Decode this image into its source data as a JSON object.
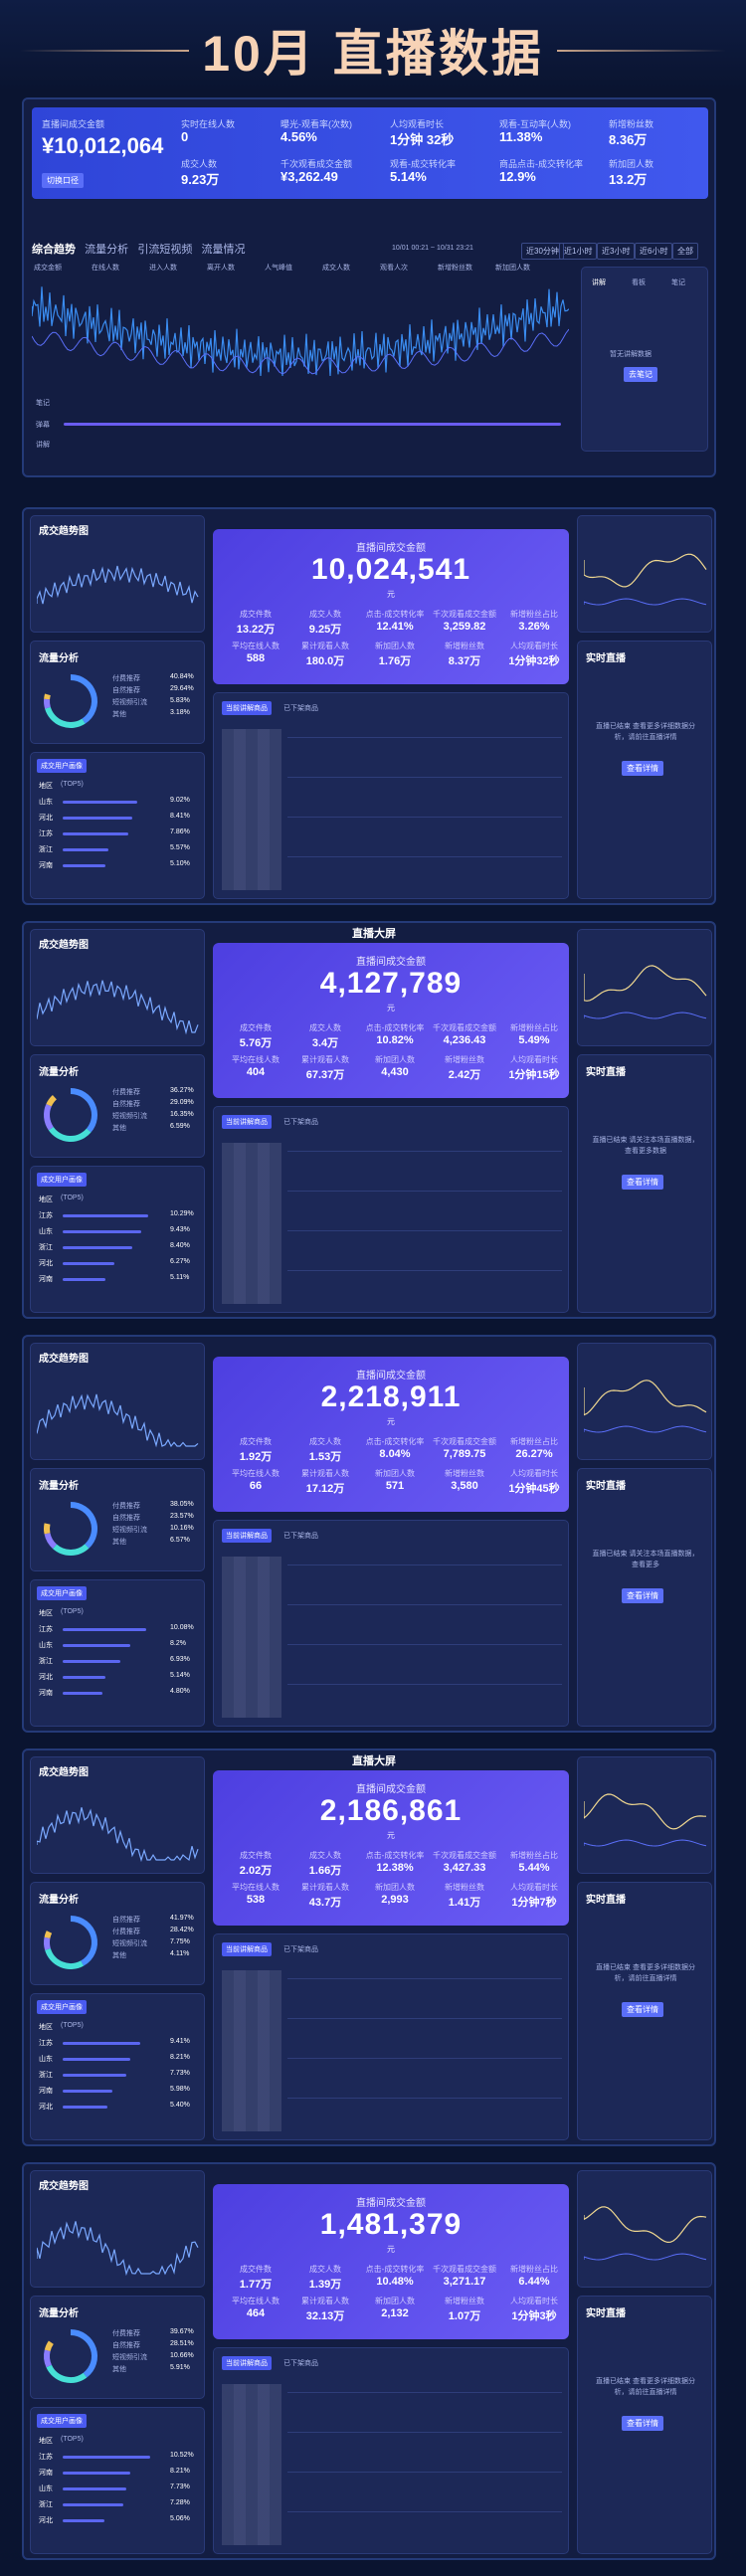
{
  "banner": {
    "title": "10月 直播数据"
  },
  "p1": {
    "gmv_label": "直播间成交金额",
    "gmv": "¥10,012,064",
    "gmv_btn": "切换口径",
    "stats": [
      {
        "l": "实时在线人数",
        "v": "0"
      },
      {
        "l": "曝光-观看率(次数)",
        "v": "4.56%"
      },
      {
        "l": "人均观看时长",
        "v": "1分钟 32秒"
      },
      {
        "l": "观看-互动率(人数)",
        "v": "11.38%"
      },
      {
        "l": "新增粉丝数",
        "v": "8.36万"
      },
      {
        "l": "成交人数",
        "v": "9.23万"
      },
      {
        "l": "千次观看成交金额",
        "v": "¥3,262.49"
      },
      {
        "l": "观看-成交转化率",
        "v": "5.14%"
      },
      {
        "l": "商品点击-成交转化率",
        "v": "12.9%"
      },
      {
        "l": "新加团人数",
        "v": "13.2万"
      }
    ],
    "tabs": [
      "综合趋势",
      "流量分析",
      "引流短视频",
      "流量情况"
    ],
    "date_range": "10/01 00:21 ~ 10/31 23:21",
    "ranges": [
      "近30分钟",
      "近1小时",
      "近3小时",
      "近6小时",
      "全部"
    ],
    "legend": [
      "成交金额",
      "在线人数",
      "进入人数",
      "离开人数",
      "人气峰值",
      "成交人数",
      "观看人次",
      "新增粉丝数",
      "新加团人数"
    ],
    "side_tabs": [
      "讲解",
      "看板",
      "笔记"
    ],
    "side_text": "暂无讲解数据",
    "side_btn": "去笔记",
    "foot1": "笔记",
    "foot2": "弹幕",
    "foot3": "讲解"
  },
  "screens": [
    {
      "label": "直播间成交金额",
      "value": "10,024,541",
      "unit": "元",
      "s1": [
        [
          "成交件数",
          "13.22万"
        ],
        [
          "成交人数",
          "9.25万"
        ],
        [
          "点击-成交转化率",
          "12.41%"
        ],
        [
          "千次观看成交金额",
          "3,259.82"
        ],
        [
          "新增粉丝占比",
          "3.26%"
        ]
      ],
      "s2": [
        [
          "平均在线人数",
          "588"
        ],
        [
          "累计观看人数",
          "180.0万"
        ],
        [
          "新加团人数",
          "1.76万"
        ],
        [
          "新增粉丝数",
          "8.37万"
        ],
        [
          "人均观看时长",
          "1分钟32秒"
        ]
      ],
      "trend": "成交趋势图",
      "flow": "流量分析",
      "live": "实时直播",
      "live_text": "直播已结束 查看更多详细数据分析，请前往直播详情",
      "live_btn": "查看详情",
      "legend": [
        "付费推荐",
        "自然推荐",
        "短视频引流",
        "其他"
      ],
      "pct": [
        "40.84%",
        "29.64%",
        "5.83%",
        "3.18%"
      ],
      "region_rows": [
        [
          "山东",
          "9.02%"
        ],
        [
          "河北",
          "8.41%"
        ],
        [
          "江苏",
          "7.86%"
        ],
        [
          "浙江",
          "5.57%"
        ],
        [
          "河南",
          "5.10%"
        ]
      ],
      "table_tabs": [
        "当前讲解商品",
        "已下架商品"
      ],
      "region_tab": "成交用户画像",
      "region_title": "地区",
      "region_unit": "(TOP5)"
    },
    {
      "label": "直播间成交金额",
      "value": "4,127,789",
      "unit": "元",
      "s1": [
        [
          "成交件数",
          "5.76万"
        ],
        [
          "成交人数",
          "3.4万"
        ],
        [
          "点击-成交转化率",
          "10.82%"
        ],
        [
          "千次观看成交金额",
          "4,236.43"
        ],
        [
          "新增粉丝占比",
          "5.49%"
        ]
      ],
      "s2": [
        [
          "平均在线人数",
          "404"
        ],
        [
          "累计观看人数",
          "67.37万"
        ],
        [
          "新加团人数",
          "4,430"
        ],
        [
          "新增粉丝数",
          "2.42万"
        ],
        [
          "人均观看时长",
          "1分钟15秒"
        ]
      ],
      "trend": "成交趋势图",
      "flow": "流量分析",
      "live": "实时直播",
      "live_text": "直播已结束 请关注本场直播数据，查看更多数据",
      "live_btn": "查看详情",
      "legend": [
        "付费推荐",
        "自然推荐",
        "短视频引流",
        "其他"
      ],
      "pct": [
        "36.27%",
        "29.09%",
        "16.35%",
        "6.59%"
      ],
      "region_rows": [
        [
          "江苏",
          "10.29%"
        ],
        [
          "山东",
          "9.43%"
        ],
        [
          "浙江",
          "8.40%"
        ],
        [
          "河北",
          "6.27%"
        ],
        [
          "河南",
          "5.11%"
        ]
      ],
      "table_tabs": [
        "当前讲解商品",
        "已下架商品"
      ],
      "region_tab": "成交用户画像",
      "region_title": "地区",
      "region_unit": "(TOP5)",
      "brand": "直播大屏"
    },
    {
      "label": "直播间成交金额",
      "value": "2,218,911",
      "unit": "元",
      "s1": [
        [
          "成交件数",
          "1.92万"
        ],
        [
          "成交人数",
          "1.53万"
        ],
        [
          "点击-成交转化率",
          "8.04%"
        ],
        [
          "千次观看成交金额",
          "7,789.75"
        ],
        [
          "新增粉丝占比",
          "26.27%"
        ]
      ],
      "s2": [
        [
          "平均在线人数",
          "66"
        ],
        [
          "累计观看人数",
          "17.12万"
        ],
        [
          "新加团人数",
          "571"
        ],
        [
          "新增粉丝数",
          "3,580"
        ],
        [
          "人均观看时长",
          "1分钟45秒"
        ]
      ],
      "trend": "成交趋势图",
      "flow": "流量分析",
      "live": "实时直播",
      "live_text": "直播已结束 请关注本场直播数据，查看更多",
      "live_btn": "查看详情",
      "legend": [
        "付费推荐",
        "自然推荐",
        "短视频引流",
        "其他"
      ],
      "pct": [
        "38.05%",
        "23.57%",
        "10.16%",
        "6.57%"
      ],
      "region_rows": [
        [
          "江苏",
          "10.08%"
        ],
        [
          "山东",
          "8.2%"
        ],
        [
          "浙江",
          "6.93%"
        ],
        [
          "河北",
          "5.14%"
        ],
        [
          "河南",
          "4.80%"
        ]
      ],
      "table_tabs": [
        "当前讲解商品",
        "已下架商品"
      ],
      "region_tab": "成交用户画像",
      "region_title": "地区",
      "region_unit": "(TOP5)"
    },
    {
      "label": "直播间成交金额",
      "value": "2,186,861",
      "unit": "元",
      "s1": [
        [
          "成交件数",
          "2.02万"
        ],
        [
          "成交人数",
          "1.66万"
        ],
        [
          "点击-成交转化率",
          "12.38%"
        ],
        [
          "千次观看成交金额",
          "3,427.33"
        ],
        [
          "新增粉丝占比",
          "5.44%"
        ]
      ],
      "s2": [
        [
          "平均在线人数",
          "538"
        ],
        [
          "累计观看人数",
          "43.7万"
        ],
        [
          "新加团人数",
          "2,993"
        ],
        [
          "新增粉丝数",
          "1.41万"
        ],
        [
          "人均观看时长",
          "1分钟7秒"
        ]
      ],
      "trend": "成交趋势图",
      "flow": "流量分析",
      "live": "实时直播",
      "live_text": "直播已结束 查看更多详细数据分析，请前往直播详情",
      "live_btn": "查看详情",
      "legend": [
        "自然推荐",
        "付费推荐",
        "短视频引流",
        "其他"
      ],
      "pct": [
        "41.97%",
        "28.42%",
        "7.75%",
        "4.11%"
      ],
      "region_rows": [
        [
          "江苏",
          "9.41%"
        ],
        [
          "山东",
          "8.21%"
        ],
        [
          "浙江",
          "7.73%"
        ],
        [
          "河南",
          "5.98%"
        ],
        [
          "河北",
          "5.40%"
        ]
      ],
      "table_tabs": [
        "当前讲解商品",
        "已下架商品"
      ],
      "region_tab": "成交用户画像",
      "region_title": "地区",
      "region_unit": "(TOP5)",
      "brand": "直播大屏"
    },
    {
      "label": "直播间成交金额",
      "value": "1,481,379",
      "unit": "元",
      "s1": [
        [
          "成交件数",
          "1.77万"
        ],
        [
          "成交人数",
          "1.39万"
        ],
        [
          "点击-成交转化率",
          "10.48%"
        ],
        [
          "千次观看成交金额",
          "3,271.17"
        ],
        [
          "新增粉丝占比",
          "6.44%"
        ]
      ],
      "s2": [
        [
          "平均在线人数",
          "464"
        ],
        [
          "累计观看人数",
          "32.13万"
        ],
        [
          "新加团人数",
          "2,132"
        ],
        [
          "新增粉丝数",
          "1.07万"
        ],
        [
          "人均观看时长",
          "1分钟3秒"
        ]
      ],
      "trend": "成交趋势图",
      "flow": "流量分析",
      "live": "实时直播",
      "live_text": "直播已结束 查看更多详细数据分析，请前往直播详情",
      "live_btn": "查看详情",
      "legend": [
        "付费推荐",
        "自然推荐",
        "短视频引流",
        "其他"
      ],
      "pct": [
        "39.67%",
        "28.51%",
        "10.66%",
        "5.91%"
      ],
      "region_rows": [
        [
          "江苏",
          "10.52%"
        ],
        [
          "河南",
          "8.21%"
        ],
        [
          "山东",
          "7.73%"
        ],
        [
          "浙江",
          "7.28%"
        ],
        [
          "河北",
          "5.06%"
        ]
      ],
      "table_tabs": [
        "当前讲解商品",
        "已下架商品"
      ],
      "region_tab": "成交用户画像",
      "region_title": "地区",
      "region_unit": "(TOP5)"
    }
  ]
}
